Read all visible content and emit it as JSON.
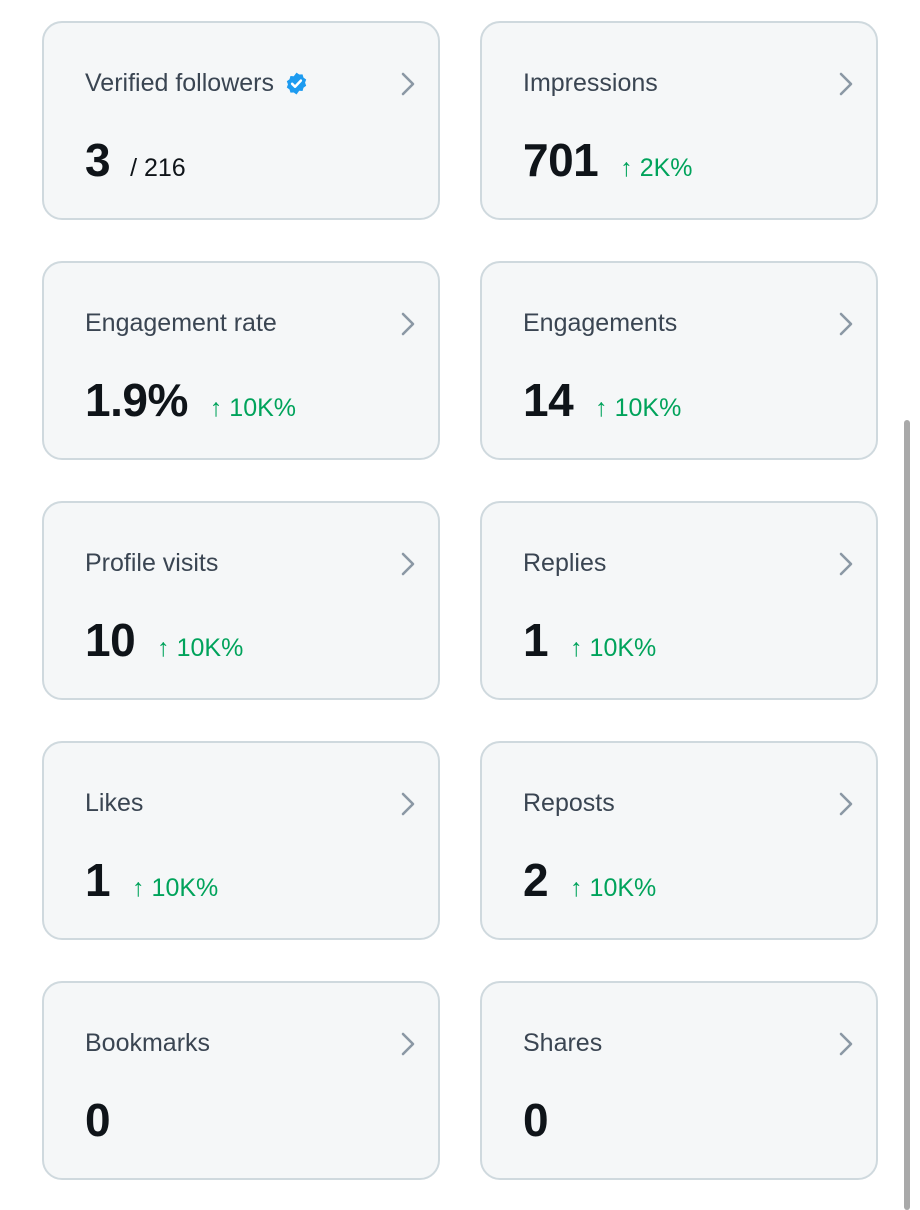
{
  "colors": {
    "card_bg": "#f5f7f8",
    "card_border": "#cfd9de",
    "label": "#3a4552",
    "value": "#0f1419",
    "positive_change": "#00a35b",
    "verified_badge": "#1d9bf0",
    "chevron": "#8b98a5"
  },
  "cards": [
    {
      "title": "Verified followers",
      "icon": "verified-badge-icon",
      "value": "3",
      "denominator": "/ 216",
      "change": ""
    },
    {
      "title": "Impressions",
      "value": "701",
      "change": "↑ 2K%"
    },
    {
      "title": "Engagement rate",
      "value": "1.9%",
      "change": "↑ 10K%"
    },
    {
      "title": "Engagements",
      "value": "14",
      "change": "↑ 10K%"
    },
    {
      "title": "Profile visits",
      "value": "10",
      "change": "↑ 10K%"
    },
    {
      "title": "Replies",
      "value": "1",
      "change": "↑ 10K%"
    },
    {
      "title": "Likes",
      "value": "1",
      "change": "↑ 10K%"
    },
    {
      "title": "Reposts",
      "value": "2",
      "change": "↑ 10K%"
    },
    {
      "title": "Bookmarks",
      "value": "0",
      "change": ""
    },
    {
      "title": "Shares",
      "value": "0",
      "change": ""
    }
  ],
  "chevron_icon": "chevron-right-icon"
}
